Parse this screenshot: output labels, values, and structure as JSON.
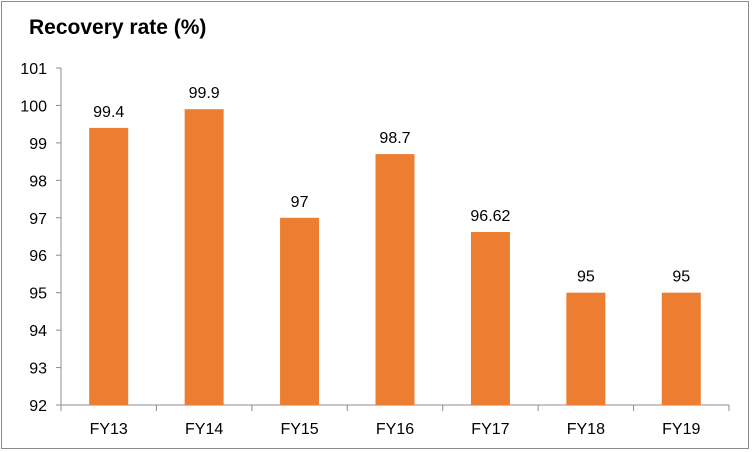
{
  "chart_data": {
    "type": "bar",
    "title": "Recovery rate (%)",
    "categories": [
      "FY13",
      "FY14",
      "FY15",
      "FY16",
      "FY17",
      "FY18",
      "FY19"
    ],
    "values": [
      99.4,
      99.9,
      97,
      98.7,
      96.62,
      95,
      95
    ],
    "data_labels": [
      "99.4",
      "99.9",
      "97",
      "98.7",
      "96.62",
      "95",
      "95"
    ],
    "ylim": [
      92,
      101
    ],
    "yticks": [
      92,
      93,
      94,
      95,
      96,
      97,
      98,
      99,
      100,
      101
    ],
    "xlabel": "",
    "ylabel": "",
    "grid": false,
    "legend": "none",
    "bar_color": "#ed7d31",
    "axis_color": "#8c8c8c"
  }
}
